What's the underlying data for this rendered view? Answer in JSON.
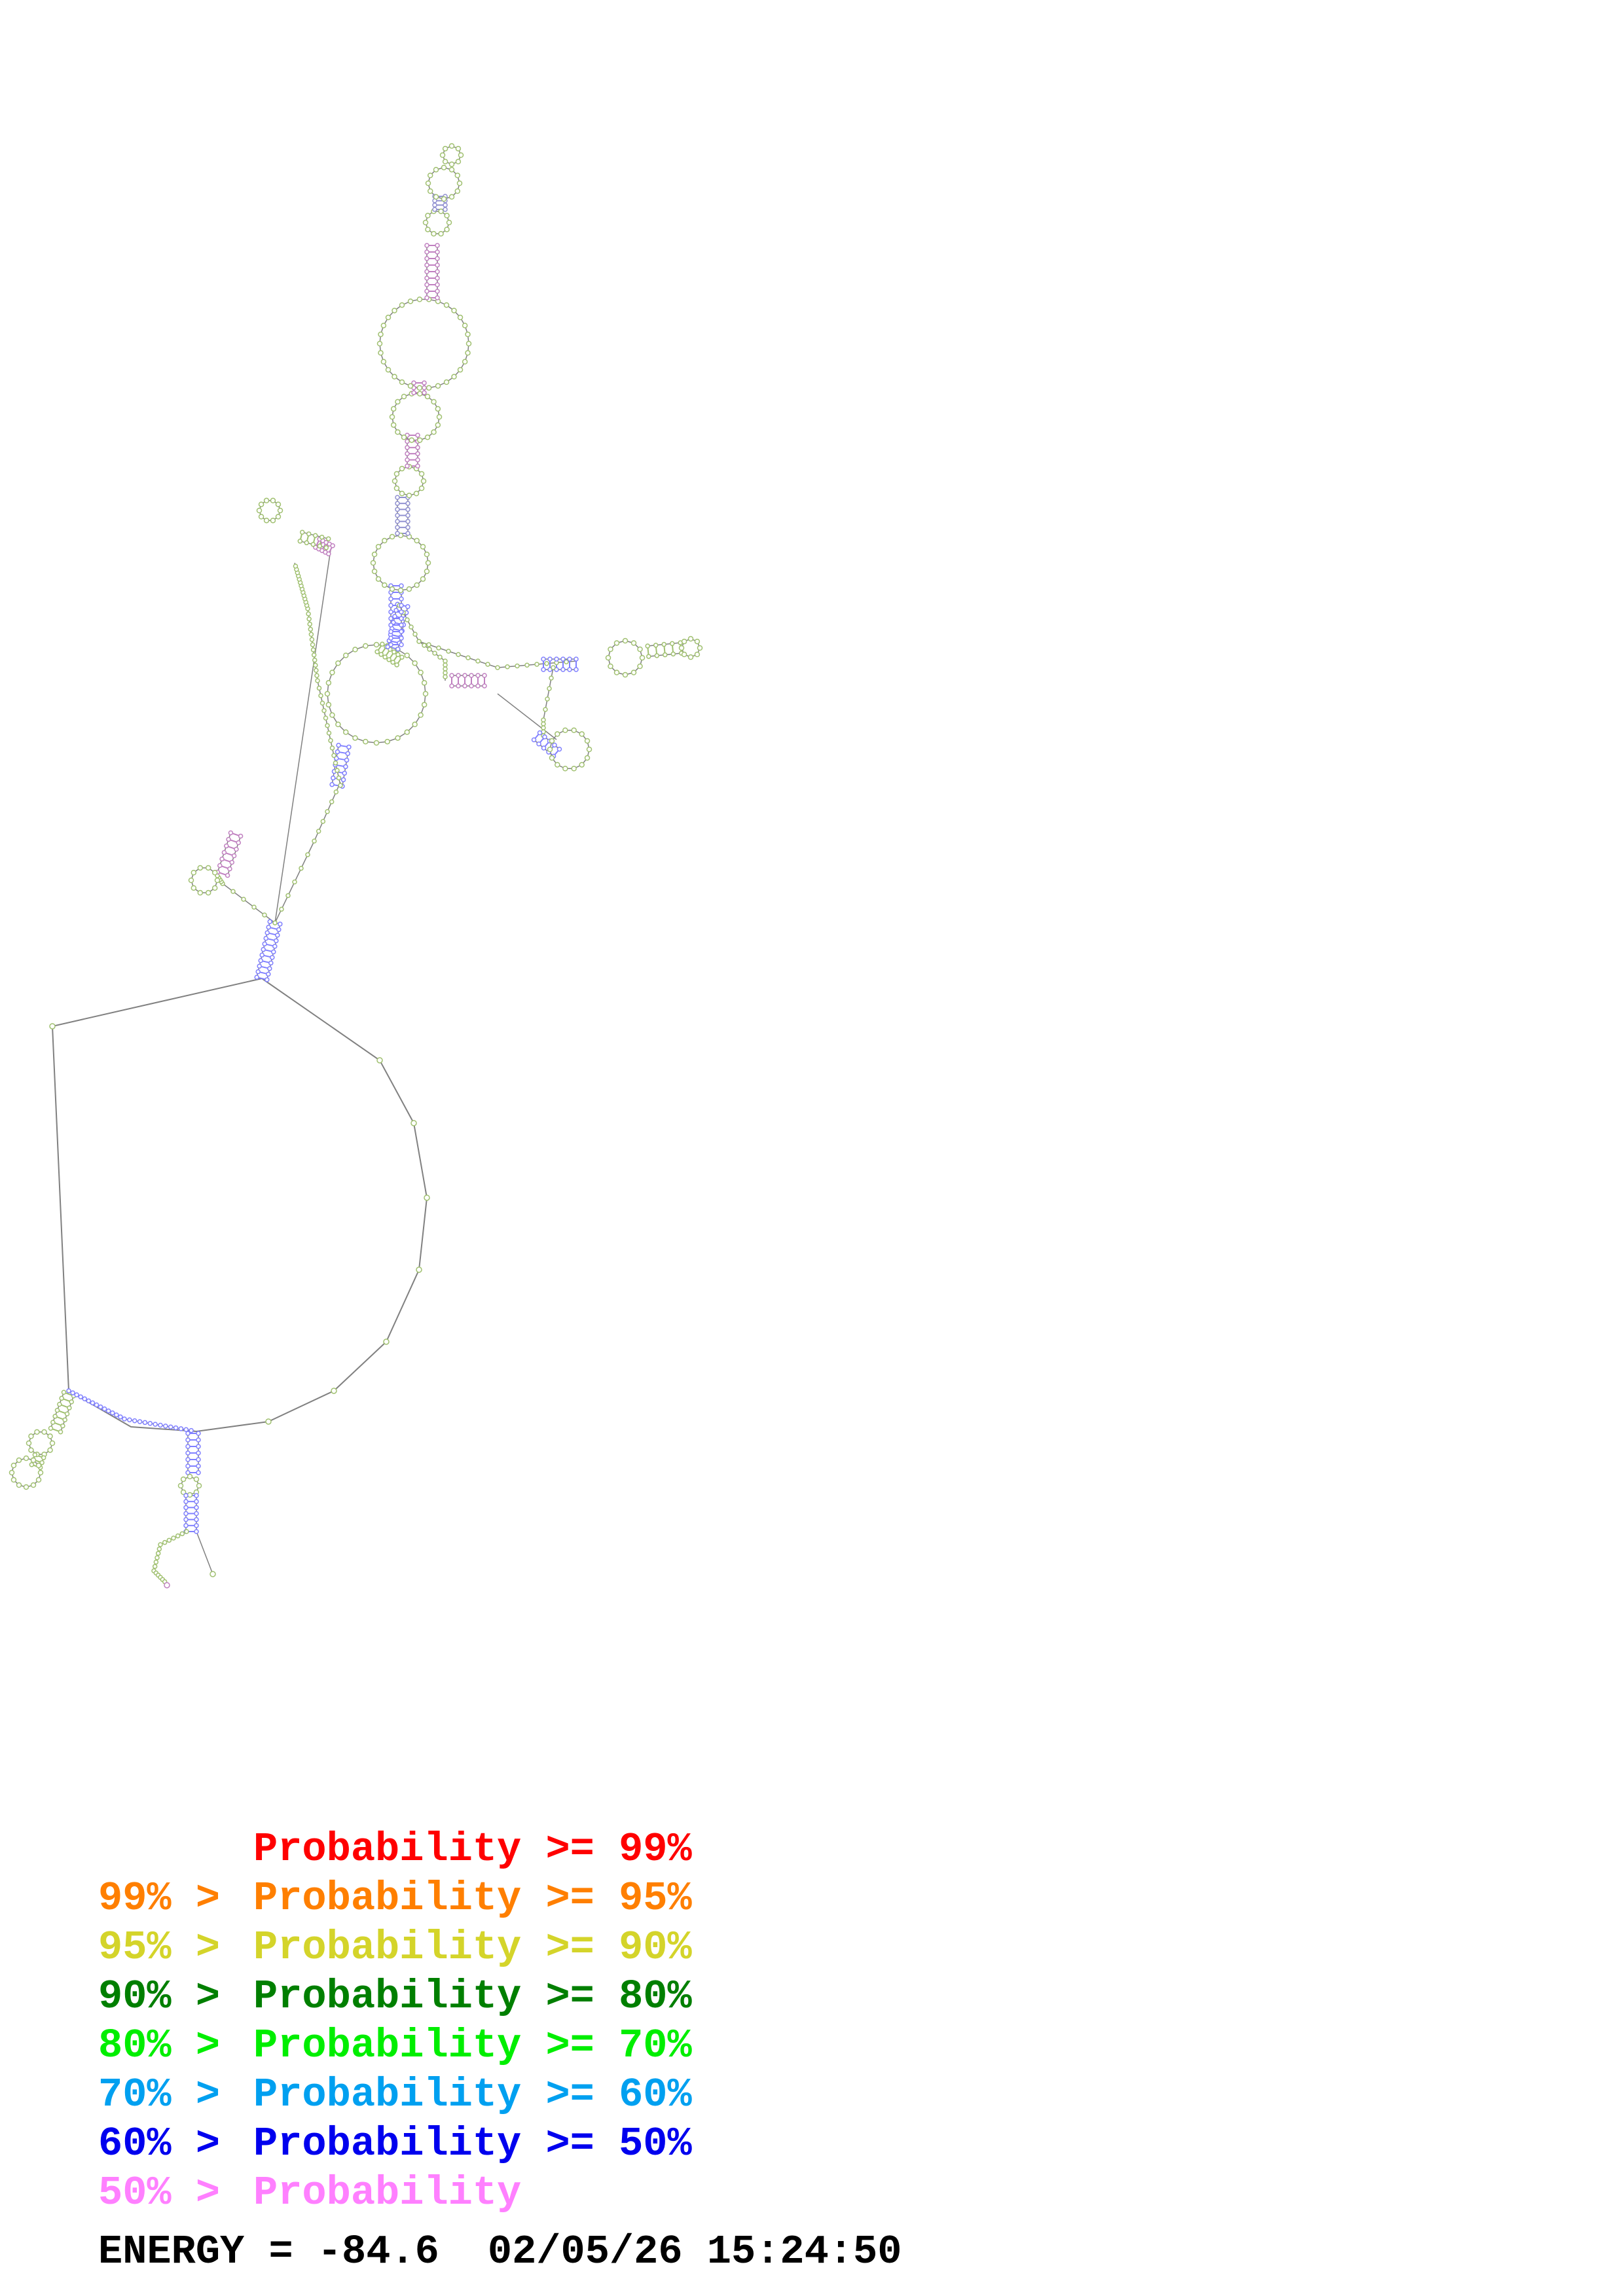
{
  "legend": {
    "items": [
      {
        "prefix": "",
        "label": "Probability >= 99%",
        "color": "#ff0000"
      },
      {
        "prefix": "99% >",
        "label": "Probability >= 95%",
        "color": "#ff7f00"
      },
      {
        "prefix": "95% >",
        "label": "Probability >= 90%",
        "color": "#d4d42a"
      },
      {
        "prefix": "90% >",
        "label": "Probability >= 80%",
        "color": "#007f00"
      },
      {
        "prefix": "80% >",
        "label": "Probability >= 70%",
        "color": "#00ee00"
      },
      {
        "prefix": "70% >",
        "label": "Probability >= 60%",
        "color": "#00a0f0"
      },
      {
        "prefix": "60% >",
        "label": "Probability >= 50%",
        "color": "#0000ee"
      },
      {
        "prefix": "50% >",
        "label": "Probability",
        "color": "#ff80ff"
      }
    ]
  },
  "energy": {
    "label": "ENERGY = -84.6",
    "datetime": "02/05/26 15:24:50"
  },
  "structure": {
    "line_color": "#808080",
    "pair_colors": [
      "#8080ff",
      "#9090d0",
      "#a0c070",
      "#c080c0"
    ]
  }
}
